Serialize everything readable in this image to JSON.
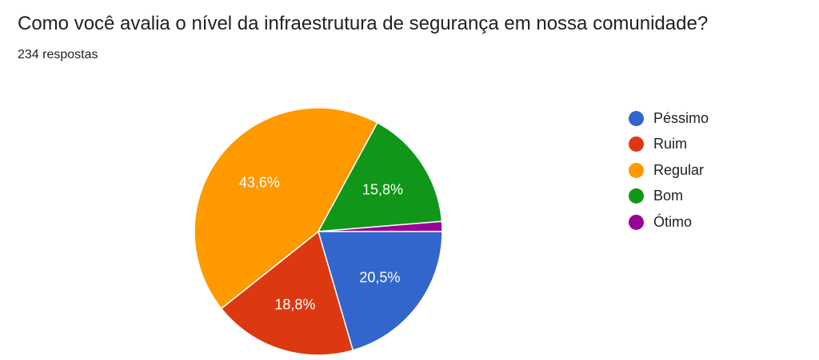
{
  "question": "Como você avalia o nível da infraestrutura de segurança em nossa comunidade?",
  "responses_text": "234 respostas",
  "chart_data": {
    "type": "pie",
    "title": "Como você avalia o nível da infraestrutura de segurança em nossa comunidade?",
    "subtitle": "234 respostas",
    "total": 234,
    "legend_position": "right",
    "categories": [
      "Péssimo",
      "Ruim",
      "Regular",
      "Bom",
      "Ótimo"
    ],
    "values": [
      20.5,
      18.8,
      43.6,
      15.8,
      1.3
    ],
    "value_unit": "%",
    "colors": [
      "#3366cc",
      "#dc3912",
      "#ff9900",
      "#109618",
      "#990099"
    ],
    "slice_labels": [
      "20,5%",
      "18,8%",
      "43,6%",
      "15,8%",
      ""
    ]
  }
}
